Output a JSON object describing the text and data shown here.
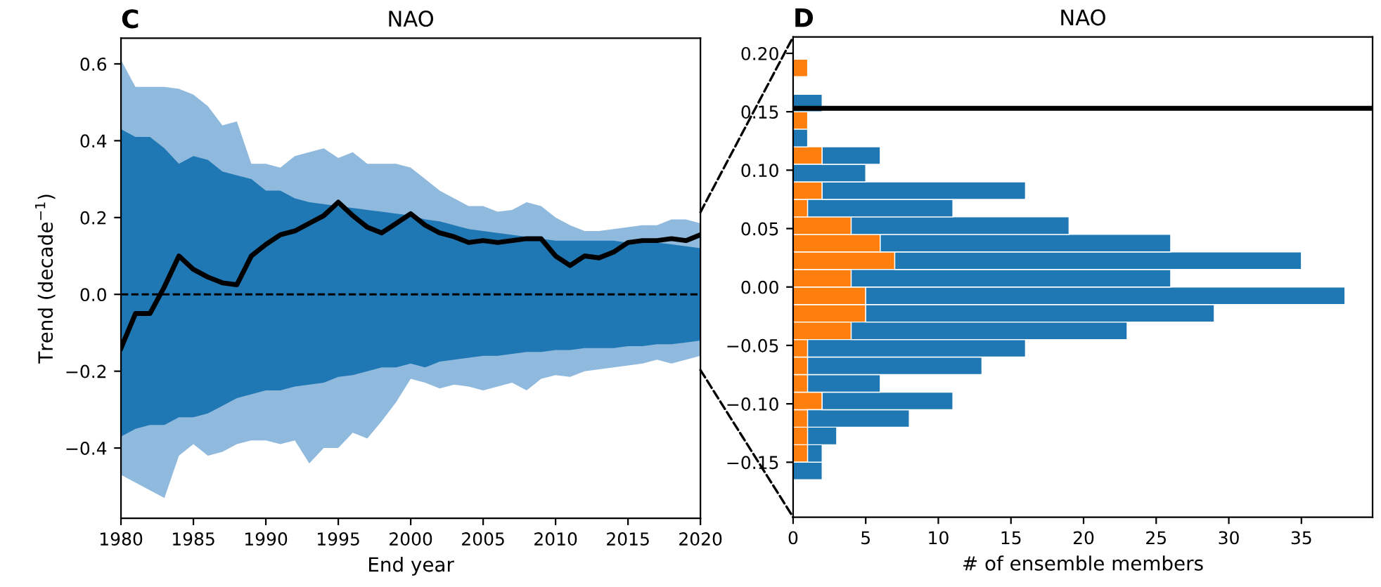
{
  "chart_data": [
    {
      "type": "line",
      "title": "NAO",
      "xlabel": "End year",
      "ylabel": "Trend (decade$^{−1}$)",
      "annotations": [
        "C"
      ],
      "x": [
        1980,
        1981,
        1982,
        1983,
        1984,
        1985,
        1986,
        1987,
        1988,
        1989,
        1990,
        1991,
        1992,
        1993,
        1994,
        1995,
        1996,
        1997,
        1998,
        1999,
        2000,
        2001,
        2002,
        2003,
        2004,
        2005,
        2006,
        2007,
        2008,
        2009,
        2010,
        2011,
        2012,
        2013,
        2014,
        2015,
        2016,
        2017,
        2018,
        2019,
        2020
      ],
      "series": [
        {
          "color": "#8fb9dd",
          "values": [
            null,
            null,
            null,
            null,
            null,
            null,
            null,
            null,
            null,
            null,
            null,
            null,
            null,
            null,
            null,
            null,
            null,
            null,
            null,
            null,
            null,
            null,
            null,
            null,
            null,
            null,
            null,
            null,
            null,
            null,
            null,
            null,
            null,
            null,
            null,
            null,
            null,
            null,
            null,
            null,
            null
          ],
          "lower": [
            -0.47,
            -0.49,
            -0.51,
            -0.53,
            -0.42,
            -0.39,
            -0.42,
            -0.41,
            -0.39,
            -0.38,
            -0.38,
            -0.39,
            -0.38,
            -0.44,
            -0.4,
            -0.4,
            -0.36,
            -0.375,
            -0.33,
            -0.28,
            -0.22,
            -0.23,
            -0.245,
            -0.235,
            -0.24,
            -0.25,
            -0.24,
            -0.23,
            -0.25,
            -0.22,
            -0.21,
            -0.215,
            -0.2,
            -0.195,
            -0.19,
            -0.185,
            -0.18,
            -0.17,
            -0.18,
            -0.17,
            -0.16
          ],
          "upper": [
            0.61,
            0.54,
            0.54,
            0.54,
            0.535,
            0.52,
            0.49,
            0.44,
            0.45,
            0.34,
            0.34,
            0.33,
            0.36,
            0.37,
            0.38,
            0.355,
            0.37,
            0.34,
            0.34,
            0.34,
            0.33,
            0.3,
            0.27,
            0.25,
            0.23,
            0.23,
            0.215,
            0.22,
            0.24,
            0.23,
            0.2,
            0.18,
            0.165,
            0.165,
            0.17,
            0.175,
            0.18,
            0.18,
            0.195,
            0.195,
            0.185
          ]
        },
        {
          "color": "#1f77b4",
          "values": [
            null,
            null,
            null,
            null,
            null,
            null,
            null,
            null,
            null,
            null,
            null,
            null,
            null,
            null,
            null,
            null,
            null,
            null,
            null,
            null,
            null,
            null,
            null,
            null,
            null,
            null,
            null,
            null,
            null,
            null,
            null,
            null,
            null,
            null,
            null,
            null,
            null,
            null,
            null,
            null,
            null
          ],
          "lower": [
            -0.37,
            -0.35,
            -0.34,
            -0.34,
            -0.32,
            -0.32,
            -0.31,
            -0.29,
            -0.27,
            -0.26,
            -0.25,
            -0.25,
            -0.24,
            -0.235,
            -0.23,
            -0.215,
            -0.21,
            -0.2,
            -0.19,
            -0.19,
            -0.18,
            -0.19,
            -0.175,
            -0.17,
            -0.165,
            -0.16,
            -0.16,
            -0.155,
            -0.15,
            -0.15,
            -0.145,
            -0.145,
            -0.14,
            -0.14,
            -0.14,
            -0.135,
            -0.135,
            -0.13,
            -0.13,
            -0.125,
            -0.12
          ],
          "upper": [
            0.43,
            0.41,
            0.41,
            0.38,
            0.34,
            0.36,
            0.35,
            0.32,
            0.31,
            0.3,
            0.27,
            0.27,
            0.25,
            0.24,
            0.235,
            0.23,
            0.225,
            0.22,
            0.215,
            0.21,
            0.205,
            0.195,
            0.19,
            0.18,
            0.17,
            0.165,
            0.16,
            0.155,
            0.15,
            0.145,
            0.14,
            0.14,
            0.14,
            0.14,
            0.14,
            0.135,
            0.135,
            0.135,
            0.13,
            0.125,
            0.12
          ]
        },
        {
          "color": "#000000",
          "values": [
            -0.14,
            -0.05,
            -0.05,
            0.02,
            0.1,
            0.065,
            0.045,
            0.03,
            0.025,
            0.1,
            0.13,
            0.155,
            0.165,
            0.185,
            0.205,
            0.24,
            0.205,
            0.175,
            0.16,
            0.185,
            0.21,
            0.18,
            0.16,
            0.15,
            0.135,
            0.14,
            0.135,
            0.14,
            0.145,
            0.145,
            0.1,
            0.075,
            0.1,
            0.095,
            0.11,
            0.135,
            0.14,
            0.14,
            0.145,
            0.14,
            0.155
          ]
        }
      ],
      "ref_lines": [
        {
          "axis": "y",
          "value": 0,
          "color": "#000000",
          "line_style": "dashed"
        }
      ],
      "xlim": [
        1980,
        2020
      ],
      "xticks": [
        1980,
        1985,
        1990,
        1995,
        2000,
        2005,
        2010,
        2015,
        2020
      ],
      "ylim": [
        -0.583,
        0.667
      ],
      "yticks": [
        {
          "value": -0.4,
          "label": "−0.4"
        },
        {
          "value": -0.2,
          "label": "−0.2"
        },
        {
          "value": 0,
          "label": "0.0"
        },
        {
          "value": 0.2,
          "label": "0.2"
        },
        {
          "value": 0.4,
          "label": "0.4"
        },
        {
          "value": 0.6,
          "label": "0.6"
        }
      ],
      "grid": false
    },
    {
      "type": "bar",
      "orientation": "horizontal",
      "stacked": true,
      "title": "NAO",
      "xlabel": "# of ensemble members",
      "annotations": [
        "D"
      ],
      "x": [
        -0.1575,
        -0.1425,
        -0.1275,
        -0.1125,
        -0.0975,
        -0.0825,
        -0.0675,
        -0.0525,
        -0.0375,
        -0.0225,
        -0.0075,
        0.0075,
        0.0225,
        0.0375,
        0.0525,
        0.0675,
        0.0825,
        0.0975,
        0.1125,
        0.1275,
        0.1425,
        0.1575,
        0.1725,
        0.1875
      ],
      "series": [
        {
          "color": "#ff7f0e",
          "values": [
            0,
            1,
            1,
            1,
            2,
            1,
            1,
            1,
            4,
            5,
            5,
            4,
            7,
            6,
            4,
            1,
            2,
            0,
            2,
            0,
            1,
            0,
            0,
            1
          ]
        },
        {
          "color": "#1f77b4",
          "values": [
            2,
            1,
            2,
            7,
            9,
            5,
            12,
            15,
            19,
            24,
            33,
            22,
            28,
            20,
            15,
            10,
            14,
            5,
            4,
            1,
            0,
            2,
            0,
            0
          ]
        }
      ],
      "ref_lines": [
        {
          "axis": "y",
          "value": 0.153,
          "color": "#000000",
          "line_style": "solid"
        }
      ],
      "xlim": [
        0,
        39.9
      ],
      "xticks": [
        0,
        5,
        10,
        15,
        20,
        25,
        30,
        35
      ],
      "ylim": [
        -0.197,
        0.214
      ],
      "yticks": [
        {
          "value": -0.15,
          "label": "−0.15"
        },
        {
          "value": -0.1,
          "label": "−0.10"
        },
        {
          "value": -0.05,
          "label": "−0.05"
        },
        {
          "value": 0,
          "label": "0.00"
        },
        {
          "value": 0.05,
          "label": "0.05"
        },
        {
          "value": 0.1,
          "label": "0.10"
        },
        {
          "value": 0.15,
          "label": "0.15"
        },
        {
          "value": 0.2,
          "label": "0.20"
        }
      ],
      "grid": false
    }
  ]
}
